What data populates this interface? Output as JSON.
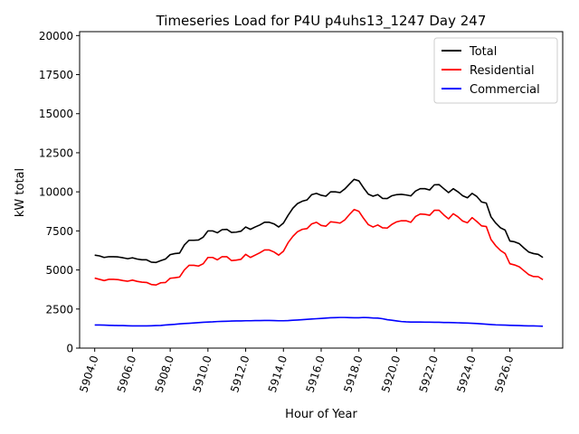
{
  "chart_data": {
    "type": "line",
    "title": "Timeseries Load for P4U p4uhs13_1247  Day 247",
    "xlabel": "Hour of Year",
    "ylabel": "kW total",
    "xlim": [
      5903.2,
      5928.8
    ],
    "ylim": [
      0,
      20250
    ],
    "x_ticks": [
      5904.0,
      5906.0,
      5908.0,
      5910.0,
      5912.0,
      5914.0,
      5916.0,
      5918.0,
      5920.0,
      5922.0,
      5924.0,
      5926.0
    ],
    "x_tick_labels": [
      "5904.0",
      "5906.0",
      "5908.0",
      "5910.0",
      "5912.0",
      "5914.0",
      "5916.0",
      "5918.0",
      "5920.0",
      "5922.0",
      "5924.0",
      "5926.0"
    ],
    "y_ticks": [
      0,
      2500,
      5000,
      7500,
      10000,
      12500,
      15000,
      17500,
      20000
    ],
    "y_tick_labels": [
      "0",
      "2500",
      "5000",
      "7500",
      "10000",
      "12500",
      "15000",
      "17500",
      "20000"
    ],
    "legend_position": "top-right",
    "x_start": 5904.0,
    "x_step": 0.25,
    "series": [
      {
        "name": "Total",
        "color": "#000000",
        "values": [
          5950,
          5900,
          5800,
          5850,
          5850,
          5830,
          5780,
          5720,
          5780,
          5700,
          5650,
          5650,
          5500,
          5480,
          5600,
          5700,
          5980,
          6050,
          6080,
          6600,
          6900,
          6900,
          6920,
          7100,
          7500,
          7500,
          7380,
          7580,
          7600,
          7400,
          7420,
          7480,
          7750,
          7600,
          7750,
          7880,
          8050,
          8050,
          7950,
          7750,
          8000,
          8500,
          8950,
          9250,
          9400,
          9480,
          9820,
          9900,
          9780,
          9720,
          10000,
          10000,
          9950,
          10180,
          10500,
          10800,
          10700,
          10250,
          9850,
          9720,
          9820,
          9580,
          9570,
          9750,
          9820,
          9840,
          9800,
          9740,
          10050,
          10200,
          10200,
          10120,
          10450,
          10460,
          10200,
          9950,
          10200,
          10000,
          9750,
          9620,
          9900,
          9700,
          9350,
          9280,
          8400,
          8000,
          7700,
          7550,
          6850,
          6800,
          6680,
          6400,
          6150,
          6050,
          6000,
          5800
        ]
      },
      {
        "name": "Residential",
        "color": "#ff0000",
        "values": [
          4480,
          4400,
          4320,
          4400,
          4400,
          4380,
          4320,
          4280,
          4350,
          4270,
          4220,
          4200,
          4070,
          4040,
          4180,
          4200,
          4470,
          4500,
          4550,
          5000,
          5300,
          5300,
          5250,
          5400,
          5800,
          5800,
          5650,
          5850,
          5850,
          5600,
          5630,
          5680,
          6000,
          5800,
          5950,
          6100,
          6280,
          6280,
          6150,
          5950,
          6200,
          6750,
          7150,
          7450,
          7600,
          7650,
          7950,
          8050,
          7850,
          7800,
          8080,
          8050,
          8000,
          8200,
          8550,
          8870,
          8750,
          8300,
          7900,
          7750,
          7880,
          7700,
          7680,
          7920,
          8080,
          8150,
          8150,
          8050,
          8420,
          8580,
          8560,
          8500,
          8820,
          8820,
          8520,
          8270,
          8600,
          8400,
          8130,
          8020,
          8350,
          8100,
          7820,
          7780,
          6950,
          6550,
          6250,
          6050,
          5400,
          5320,
          5200,
          4950,
          4700,
          4580,
          4570,
          4380
        ]
      },
      {
        "name": "Commercial",
        "color": "#0000ff",
        "values": [
          1480,
          1480,
          1470,
          1460,
          1450,
          1440,
          1440,
          1430,
          1420,
          1420,
          1420,
          1420,
          1430,
          1440,
          1450,
          1480,
          1500,
          1520,
          1550,
          1570,
          1590,
          1610,
          1630,
          1650,
          1670,
          1680,
          1700,
          1710,
          1720,
          1730,
          1740,
          1740,
          1750,
          1750,
          1760,
          1760,
          1770,
          1770,
          1760,
          1750,
          1750,
          1760,
          1780,
          1800,
          1820,
          1840,
          1860,
          1880,
          1900,
          1920,
          1940,
          1950,
          1960,
          1960,
          1950,
          1940,
          1940,
          1960,
          1950,
          1930,
          1920,
          1880,
          1820,
          1780,
          1740,
          1700,
          1680,
          1670,
          1670,
          1670,
          1660,
          1660,
          1650,
          1650,
          1640,
          1640,
          1630,
          1620,
          1610,
          1600,
          1590,
          1570,
          1550,
          1530,
          1510,
          1490,
          1480,
          1470,
          1460,
          1450,
          1440,
          1430,
          1420,
          1420,
          1410,
          1400
        ]
      }
    ]
  }
}
